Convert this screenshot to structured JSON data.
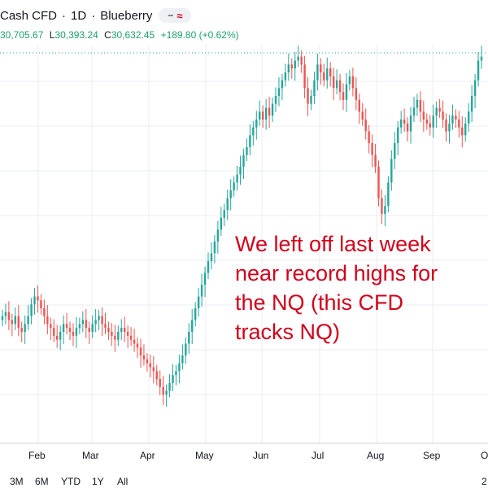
{
  "header": {
    "symbol": "Cash CFD",
    "interval": "1D",
    "provider": "Blueberry",
    "badge_dash": "−",
    "badge_approx": "≈"
  },
  "ohlc": {
    "o_value": "30,705.67",
    "l_label": "L",
    "l_value": "30,393.24",
    "c_label": "C",
    "c_value": "30,632.45",
    "change": "+189.80 (+0.62%)"
  },
  "annotation": {
    "lines": [
      "We left off last week",
      "near record highs for",
      "the NQ (this CFD",
      "tracks NQ)"
    ]
  },
  "x_axis_labels": [
    "Feb",
    "Mar",
    "Apr",
    "May",
    "Jun",
    "Jul",
    "Aug",
    "Sep",
    "O"
  ],
  "range_buttons": [
    "3M",
    "6M",
    "YTD",
    "1Y",
    "All"
  ],
  "right_edge_char": "2",
  "colors": {
    "up": "#26a69a",
    "down": "#ef5350",
    "annotation": "#d0021b",
    "grid": "#e9ecf1"
  },
  "chart_data": {
    "type": "candlestick",
    "title": "",
    "xlabel": "",
    "ylabel": "",
    "series": [
      {
        "values": [
          100,
          101,
          99,
          98,
          100,
          97,
          96,
          98,
          100,
          103,
          105,
          104,
          102,
          100,
          98,
          97,
          95,
          94,
          96,
          98,
          97,
          96,
          95,
          97,
          98,
          99,
          97,
          96,
          98,
          99,
          100,
          98,
          97,
          96,
          95,
          94,
          96,
          97,
          96,
          95,
          94,
          93,
          92,
          90,
          89,
          88,
          87,
          86,
          84,
          82,
          80,
          81,
          83,
          85,
          86,
          88,
          90,
          93,
          96,
          99,
          102,
          105,
          108,
          111,
          114,
          116,
          119,
          122,
          125,
          127,
          130,
          132,
          134,
          136,
          138,
          141,
          143,
          146,
          148,
          150,
          152,
          150,
          153,
          151,
          154,
          156,
          158,
          160,
          162,
          164,
          163,
          165,
          166,
          164,
          158,
          154,
          156,
          160,
          164,
          162,
          160,
          163,
          161,
          158,
          160,
          157,
          155,
          159,
          161,
          158,
          155,
          152,
          150,
          147,
          144,
          141,
          138,
          130,
          126,
          128,
          134,
          140,
          144,
          148,
          150,
          149,
          147,
          151,
          153,
          155,
          152,
          150,
          149,
          148,
          151,
          153,
          152,
          150,
          147,
          149,
          151,
          150,
          148,
          146,
          149,
          152,
          156,
          160,
          165,
          166
        ]
      }
    ]
  }
}
